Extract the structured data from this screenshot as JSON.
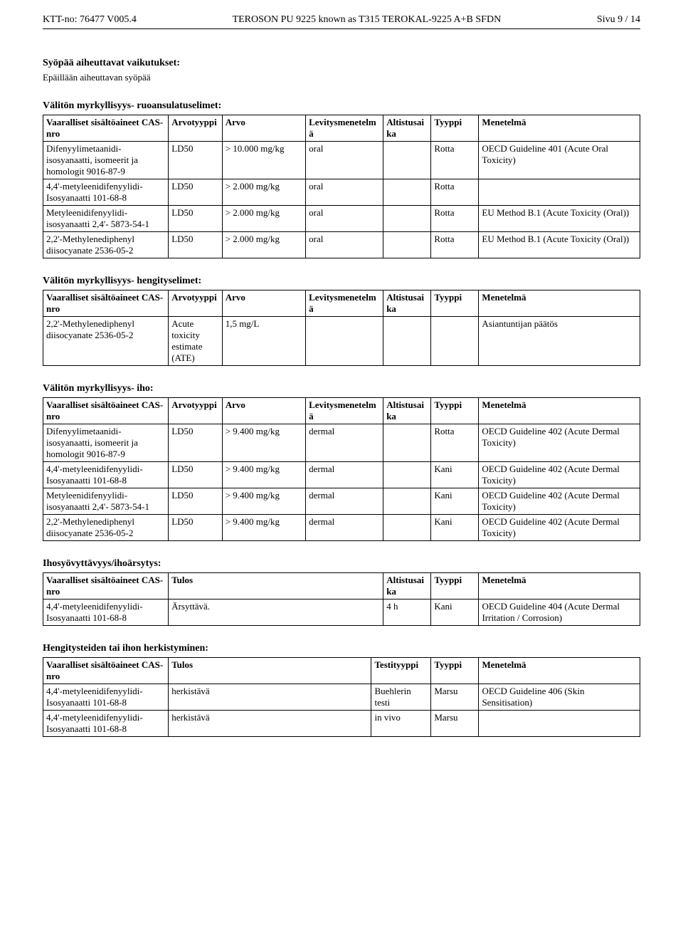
{
  "header": {
    "left": "KTT-no: 76477   V005.4",
    "center": "TEROSON PU 9225 known as T315 TEROKAL-9225  A+B SFDN",
    "right": "Sivu 9 / 14"
  },
  "sec1": {
    "title": "Syöpää aiheuttavat vaikutukset:",
    "sub": "Epäillään aiheuttavan syöpää"
  },
  "sec2": {
    "title": "Välitön myrkyllisyys- ruoansulatuselimet:"
  },
  "thA": {
    "sub": "Vaaralliset sisältöaineet CAS-nro",
    "typ": "Arvotyyppi",
    "val": "Arvo",
    "lvy": "Levitysmenetelmä",
    "alt": "Altistusaika",
    "tyy": "Tyyppi",
    "men": "Menetelmä"
  },
  "t1": {
    "r0": {
      "sub": "Difenyylimetaanidi-isosyanaatti, isomeerit ja homologit\n9016-87-9",
      "typ": "LD50",
      "val": "> 10.000 mg/kg",
      "lvy": "oral",
      "alt": "",
      "tyy": "Rotta",
      "men": "OECD Guideline 401 (Acute Oral Toxicity)"
    },
    "r1": {
      "sub": "4,4'-metyleenidifenyylidi-Isosyanaatti\n101-68-8",
      "typ": "LD50",
      "val": "> 2.000 mg/kg",
      "lvy": "oral",
      "alt": "",
      "tyy": "Rotta",
      "men": ""
    },
    "r2": {
      "sub": "Metyleenidifenyylidi-isosyanaatti 2,4'-\n5873-54-1",
      "typ": "LD50",
      "val": "> 2.000 mg/kg",
      "lvy": "oral",
      "alt": "",
      "tyy": "Rotta",
      "men": "EU Method B.1 (Acute Toxicity (Oral))"
    },
    "r3": {
      "sub": "2,2'-Methylenediphenyl diisocyanate\n2536-05-2",
      "typ": "LD50",
      "val": "> 2.000 mg/kg",
      "lvy": "oral",
      "alt": "",
      "tyy": "Rotta",
      "men": "EU Method B.1 (Acute Toxicity (Oral))"
    }
  },
  "sec3": {
    "title": "Välitön myrkyllisyys- hengityselimet:"
  },
  "t2": {
    "r0": {
      "sub": "2,2'-Methylenediphenyl diisocyanate\n2536-05-2",
      "typ": "Acute toxicity estimate (ATE)",
      "val": "1,5 mg/L",
      "lvy": "",
      "alt": "",
      "tyy": "",
      "men": "Asiantuntijan päätös"
    }
  },
  "sec4": {
    "title": "Välitön myrkyllisyys- iho:"
  },
  "t3": {
    "r0": {
      "sub": "Difenyylimetaanidi-isosyanaatti, isomeerit ja homologit\n9016-87-9",
      "typ": "LD50",
      "val": "> 9.400 mg/kg",
      "lvy": "dermal",
      "alt": "",
      "tyy": "Rotta",
      "men": "OECD Guideline 402 (Acute Dermal Toxicity)"
    },
    "r1": {
      "sub": "4,4'-metyleenidifenyylidi-Isosyanaatti\n101-68-8",
      "typ": "LD50",
      "val": "> 9.400 mg/kg",
      "lvy": "dermal",
      "alt": "",
      "tyy": "Kani",
      "men": "OECD Guideline 402 (Acute Dermal Toxicity)"
    },
    "r2": {
      "sub": "Metyleenidifenyylidi-isosyanaatti 2,4'-\n5873-54-1",
      "typ": "LD50",
      "val": "> 9.400 mg/kg",
      "lvy": "dermal",
      "alt": "",
      "tyy": "Kani",
      "men": "OECD Guideline 402 (Acute Dermal Toxicity)"
    },
    "r3": {
      "sub": "2,2'-Methylenediphenyl diisocyanate\n2536-05-2",
      "typ": "LD50",
      "val": "> 9.400 mg/kg",
      "lvy": "dermal",
      "alt": "",
      "tyy": "Kani",
      "men": "OECD Guideline 402 (Acute Dermal Toxicity)"
    }
  },
  "sec5": {
    "title": "Ihosyövyttävyys/ihoärsytys:"
  },
  "thB": {
    "sub": "Vaaralliset sisältöaineet CAS-nro",
    "tul": "Tulos",
    "alt": "Altistusaika",
    "tyy": "Tyyppi",
    "men": "Menetelmä"
  },
  "t4": {
    "r0": {
      "sub": "4,4'-metyleenidifenyylidi-Isosyanaatti\n101-68-8",
      "tul": "Ärsyttävä.",
      "alt": "4 h",
      "tyy": "Kani",
      "men": "OECD Guideline 404 (Acute Dermal Irritation / Corrosion)"
    }
  },
  "sec6": {
    "title": "Hengitysteiden tai ihon herkistyminen:"
  },
  "thC": {
    "sub": "Vaaralliset sisältöaineet CAS-nro",
    "tul": "Tulos",
    "tst": "Testityyppi",
    "tyy": "Tyyppi",
    "men": "Menetelmä"
  },
  "t5": {
    "r0": {
      "sub": "4,4'-metyleenidifenyylidi-Isosyanaatti\n101-68-8",
      "tul": "herkistävä",
      "tst": "Buehlerin testi",
      "tyy": "Marsu",
      "men": "OECD Guideline 406 (Skin Sensitisation)"
    },
    "r1": {
      "sub": "4,4'-metyleenidifenyylidi-Isosyanaatti\n101-68-8",
      "tul": "herkistävä",
      "tst": "in vivo",
      "tyy": "Marsu",
      "men": ""
    }
  }
}
